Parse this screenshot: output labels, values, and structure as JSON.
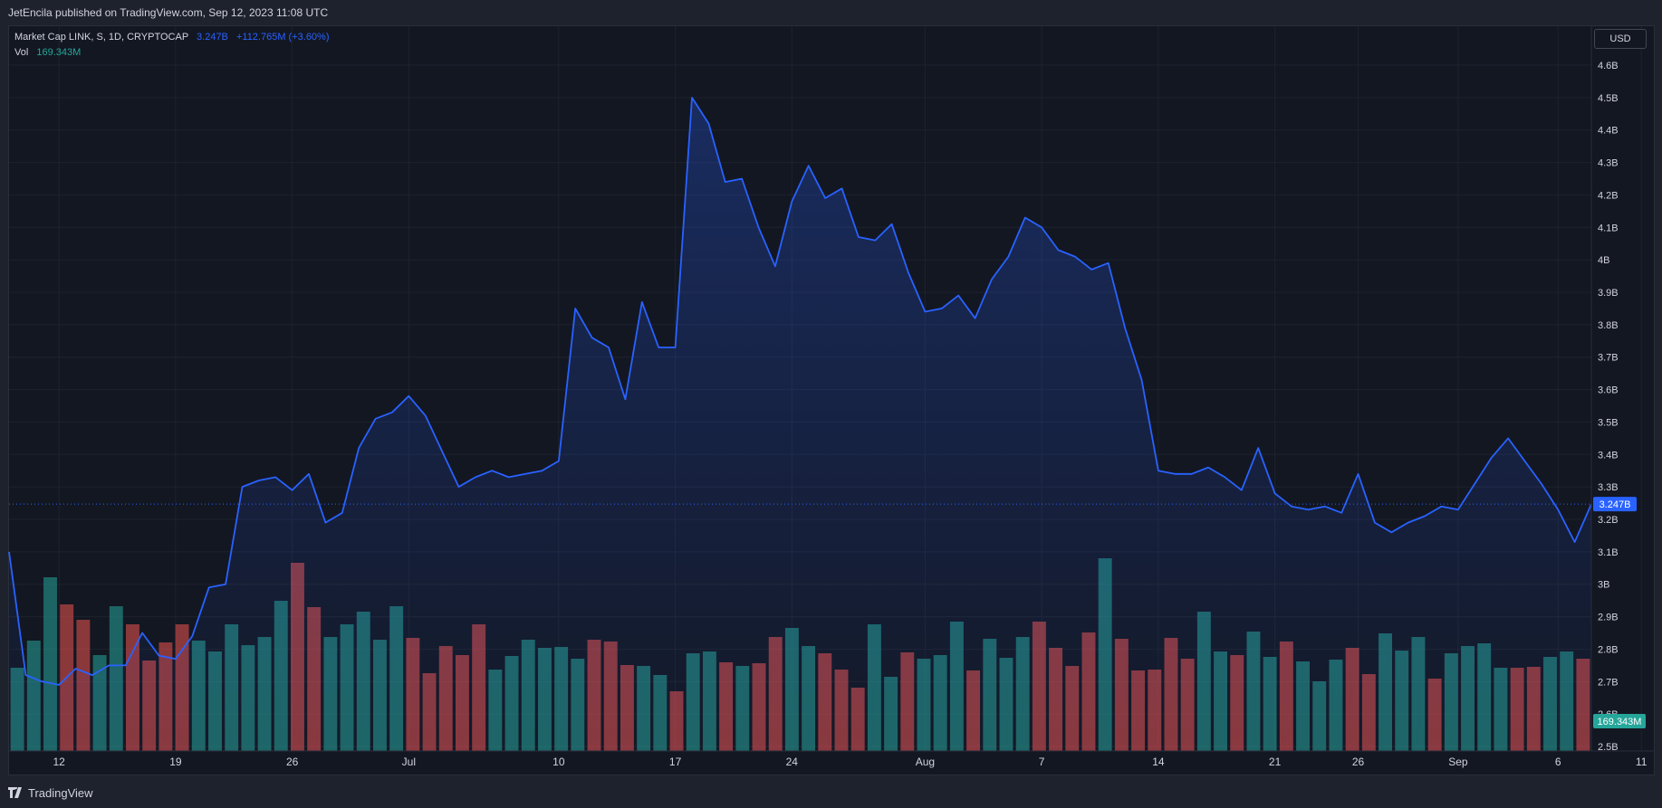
{
  "header": {
    "published": "JetEncila published on TradingView.com, Sep 12, 2023 11:08 UTC"
  },
  "legend": {
    "symbol": "Market Cap LINK, S, 1D, CRYPTOCAP",
    "value": "3.247B",
    "change": "+112.765M (+3.60%)",
    "vol_label": "Vol",
    "vol_value": "169.343M"
  },
  "currency_button": "USD",
  "footer": {
    "brand": "TradingView"
  },
  "colors": {
    "background": "#131722",
    "line": "#2962ff",
    "volume_up": "#26a69a",
    "volume_down": "#ef5350",
    "text": "#d1d4dc",
    "grid": "#1e222d"
  },
  "chart_data": {
    "type": "area",
    "series": [
      {
        "values": [
          3.1,
          2.72,
          2.7,
          2.69,
          2.74,
          2.72,
          2.75,
          2.75,
          2.85,
          2.78,
          2.77,
          2.84,
          2.99,
          3.0,
          3.3,
          3.32,
          3.33,
          3.29,
          3.34,
          3.19,
          3.22,
          3.42,
          3.51,
          3.53,
          3.58,
          3.52,
          3.41,
          3.3,
          3.33,
          3.35,
          3.33,
          3.34,
          3.35,
          3.38,
          3.85,
          3.76,
          3.73,
          3.57,
          3.87,
          3.73,
          3.73,
          4.5,
          4.42,
          4.24,
          4.25,
          4.1,
          3.98,
          4.18,
          4.29,
          4.19,
          4.22,
          4.07,
          4.06,
          4.11,
          3.96,
          3.84,
          3.85,
          3.89,
          3.82,
          3.94,
          4.01,
          4.13,
          4.1,
          4.03,
          4.01,
          3.97,
          3.99,
          3.79,
          3.63,
          3.35,
          3.34,
          3.34,
          3.36,
          3.33,
          3.29,
          3.42,
          3.28,
          3.24,
          3.23,
          3.24,
          3.22,
          3.34,
          3.19,
          3.16,
          3.19,
          3.21,
          3.24,
          3.23,
          3.31,
          3.39,
          3.45,
          3.38,
          3.31,
          3.23,
          3.13,
          3.247
        ]
      },
      {
        "name": "Vol",
        "values": [
          1,
          1,
          1,
          0,
          0,
          1,
          1,
          0,
          0,
          0,
          0,
          1,
          1,
          1,
          1,
          1,
          1,
          0,
          0,
          1,
          1,
          1,
          1,
          1,
          0,
          0,
          0,
          0,
          0,
          1,
          1,
          1,
          1,
          1,
          1,
          0,
          0,
          0,
          1,
          1,
          0,
          1,
          1,
          0,
          1,
          0,
          0,
          1,
          1,
          0,
          0,
          0,
          1,
          1,
          0,
          1,
          1,
          1,
          0,
          1,
          1,
          1,
          0,
          0,
          0,
          0,
          1,
          0,
          0,
          0,
          0,
          0,
          1,
          1,
          0,
          1,
          1,
          0,
          1,
          1,
          1,
          0,
          0,
          1,
          1,
          1,
          0,
          1,
          1,
          1,
          1,
          0,
          0,
          1,
          1,
          0
        ],
        "heights": [
          92,
          122,
          192,
          162,
          145,
          106,
          160,
          140,
          100,
          120,
          140,
          122,
          110,
          140,
          117,
          126,
          166,
          208,
          159,
          126,
          140,
          154,
          123,
          160,
          125,
          86,
          116,
          106,
          140,
          90,
          105,
          123,
          114,
          115,
          102,
          123,
          121,
          95,
          94,
          84,
          66,
          108,
          110,
          98,
          94,
          97,
          126,
          136,
          116,
          108,
          90,
          70,
          140,
          82,
          109,
          102,
          106,
          143,
          89,
          124,
          103,
          126,
          143,
          114,
          94,
          131,
          213,
          124,
          89,
          90,
          125,
          102,
          154,
          110,
          106,
          132,
          104,
          121,
          99,
          77,
          101,
          114,
          85,
          130,
          111,
          126,
          80,
          108,
          116,
          119,
          92,
          92,
          93,
          104,
          110,
          102
        ]
      }
    ],
    "x_ticks": [
      "12",
      "19",
      "26",
      "Jul",
      "10",
      "17",
      "24",
      "Aug",
      "7",
      "14",
      "21",
      "26",
      "Sep",
      "6",
      "11"
    ],
    "y_ticks": [
      "4.6B",
      "4.5B",
      "4.4B",
      "4.3B",
      "4.2B",
      "4.1B",
      "4B",
      "3.9B",
      "3.8B",
      "3.7B",
      "3.6B",
      "3.5B",
      "3.4B",
      "3.3B",
      "3.2B",
      "3.1B",
      "3B",
      "2.9B",
      "2.8B",
      "2.7B",
      "2.6B",
      "2.5B"
    ],
    "ylim": [
      2.5,
      4.6
    ],
    "last_price_label": "3.247B",
    "last_volume_label": "169.343M",
    "grid": true
  }
}
